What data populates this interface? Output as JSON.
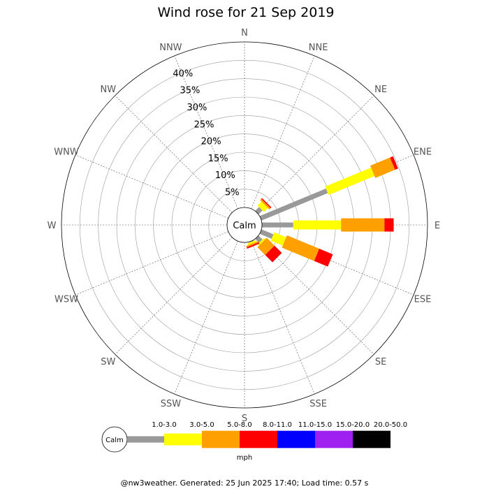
{
  "chart_data": {
    "type": "wind-rose",
    "title": "Wind rose for 21 Sep 2019",
    "directions": [
      "N",
      "NNE",
      "NE",
      "ENE",
      "E",
      "ESE",
      "SE",
      "SSE",
      "S",
      "SSW",
      "SW",
      "WSW",
      "W",
      "WNW",
      "NW",
      "NNW"
    ],
    "rings": [
      5,
      10,
      15,
      20,
      25,
      30,
      35,
      40
    ],
    "ring_labels": [
      "5%",
      "10%",
      "15%",
      "20%",
      "25%",
      "30%",
      "35%",
      "40%"
    ],
    "rmax": 45,
    "calm_label": "Calm",
    "speed_bins": [
      {
        "label": "1.0-3.0",
        "color": "#999999"
      },
      {
        "label": "3.0-5.0",
        "color": "#ffff00"
      },
      {
        "label": "5.0-8.0",
        "color": "#ffa000"
      },
      {
        "label": "8.0-11.0",
        "color": "#ff0000"
      },
      {
        "label": "11.0-15.0",
        "color": "#0000ff"
      },
      {
        "label": "15.0-20.0",
        "color": "#a020f0"
      },
      {
        "label": "20.0-50.0",
        "color": "#000000"
      }
    ],
    "unit": "mph",
    "frequencies": {
      "NE": [
        1.5,
        1.5,
        0.5,
        0.3,
        0,
        0,
        0
      ],
      "ENE": [
        19.5,
        13.5,
        5.8,
        0.9,
        0,
        0,
        0
      ],
      "E": [
        8.5,
        13.0,
        11.8,
        2.5,
        0,
        0,
        0
      ],
      "ESE": [
        3.5,
        3.5,
        9.5,
        4.0,
        0,
        0,
        0
      ],
      "SE": [
        1.5,
        0.5,
        3.0,
        2.8,
        0,
        0,
        0
      ],
      "SSE": [
        0.2,
        0.5,
        0.4,
        0.4,
        0,
        0,
        0
      ]
    }
  },
  "footer": "@nw3weather. Generated: 25 Jun 2025 17:40; Load time: 0.57 s"
}
